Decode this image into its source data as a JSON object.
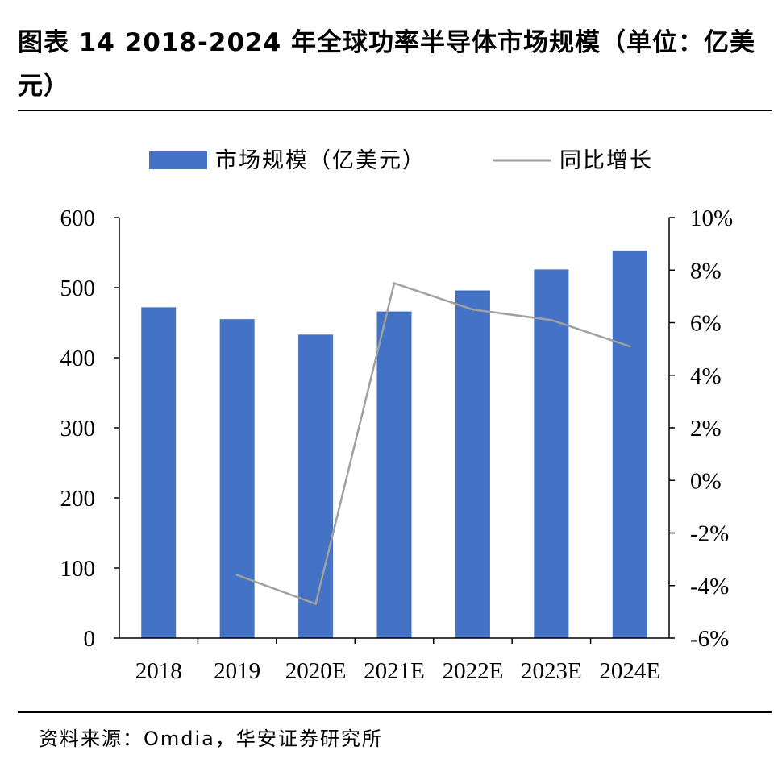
{
  "title": "图表 14 2018-2024 年全球功率半导体市场规模（单位：亿美元）",
  "source": "资料来源：Omdia，华安证券研究所",
  "colors": {
    "bar": "#4472C4",
    "line": "#A0A0A0",
    "axis": "#000000"
  },
  "chart_data": {
    "type": "bar",
    "categories": [
      "2018",
      "2019",
      "2020E",
      "2021E",
      "2022E",
      "2023E",
      "2024E"
    ],
    "series": [
      {
        "name": "市场规模（亿美元）",
        "type": "bar",
        "axis": "left",
        "values": [
          472,
          455,
          433,
          466,
          496,
          526,
          553
        ]
      },
      {
        "name": "同比增长",
        "type": "line",
        "axis": "right",
        "values": [
          null,
          -3.6,
          -4.7,
          7.5,
          6.5,
          6.1,
          5.1
        ]
      }
    ],
    "y_left": {
      "ylim": [
        0,
        600
      ],
      "ticks": [
        "0",
        "100",
        "200",
        "300",
        "400",
        "500",
        "600"
      ]
    },
    "y_right": {
      "ylim": [
        -6,
        10
      ],
      "ticks": [
        "-6%",
        "-4%",
        "-2%",
        "0%",
        "2%",
        "4%",
        "6%",
        "8%",
        "10%"
      ]
    },
    "legend_position": "top",
    "grid": false
  }
}
